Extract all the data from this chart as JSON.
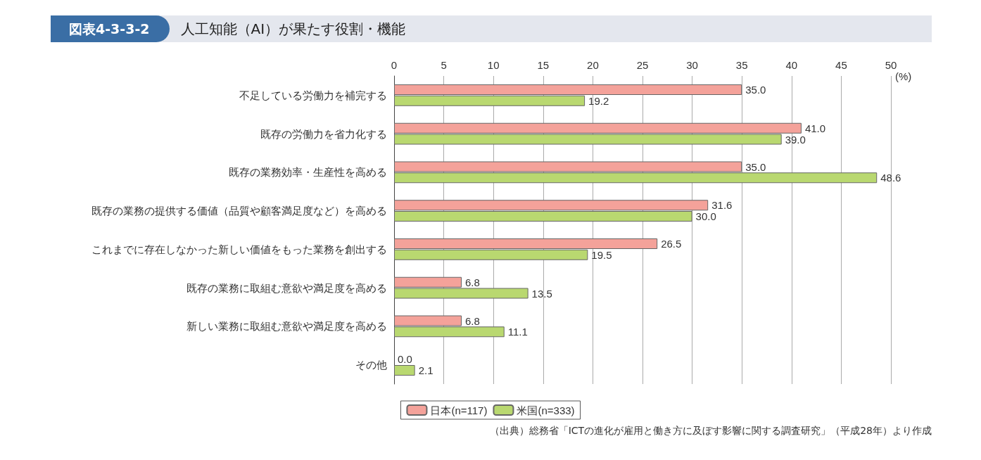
{
  "chart_data": {
    "type": "bar",
    "orientation": "horizontal",
    "subtitle": "図表4-3-3-2",
    "title": "人工知能（AI）が果たす役割・機能",
    "categories": [
      "不足している労働力を補完する",
      "既存の労働力を省力化する",
      "既存の業務効率・生産性を高める",
      "既存の業務の提供する価値（品質や顧客満足度など）を高める",
      "これまでに存在しなかった新しい価値をもった業務を創出する",
      "既存の業務に取組む意欲や満足度を高める",
      "新しい業務に取組む意欲や満足度を高める",
      "その他"
    ],
    "series": [
      {
        "name": "日本(n=117)",
        "color": "#f4a29a",
        "values": [
          35.0,
          41.0,
          35.0,
          31.6,
          26.5,
          6.8,
          6.8,
          0.0
        ],
        "value_labels": [
          "35.0",
          "41.0",
          "35.0",
          "31.6",
          "26.5",
          "6.8",
          "6.8",
          "0.0"
        ]
      },
      {
        "name": "米国(n=333)",
        "color": "#b9d870",
        "values": [
          19.2,
          39.0,
          48.6,
          30.0,
          19.5,
          13.5,
          11.1,
          2.1
        ],
        "value_labels": [
          "19.2",
          "39.0",
          "48.6",
          "30.0",
          "19.5",
          "13.5",
          "11.1",
          "2.1"
        ]
      }
    ],
    "xlabel": "(%)",
    "xlim": [
      0,
      50
    ],
    "xticks": [
      0,
      5,
      10,
      15,
      20,
      25,
      30,
      35,
      40,
      45,
      50
    ],
    "grid": "x",
    "legend": "bottom",
    "annotations": [
      "（出典）総務省「ICTの進化が雇用と働き方に及ぼす影響に関する調査研究」（平成28年）より作成"
    ]
  }
}
